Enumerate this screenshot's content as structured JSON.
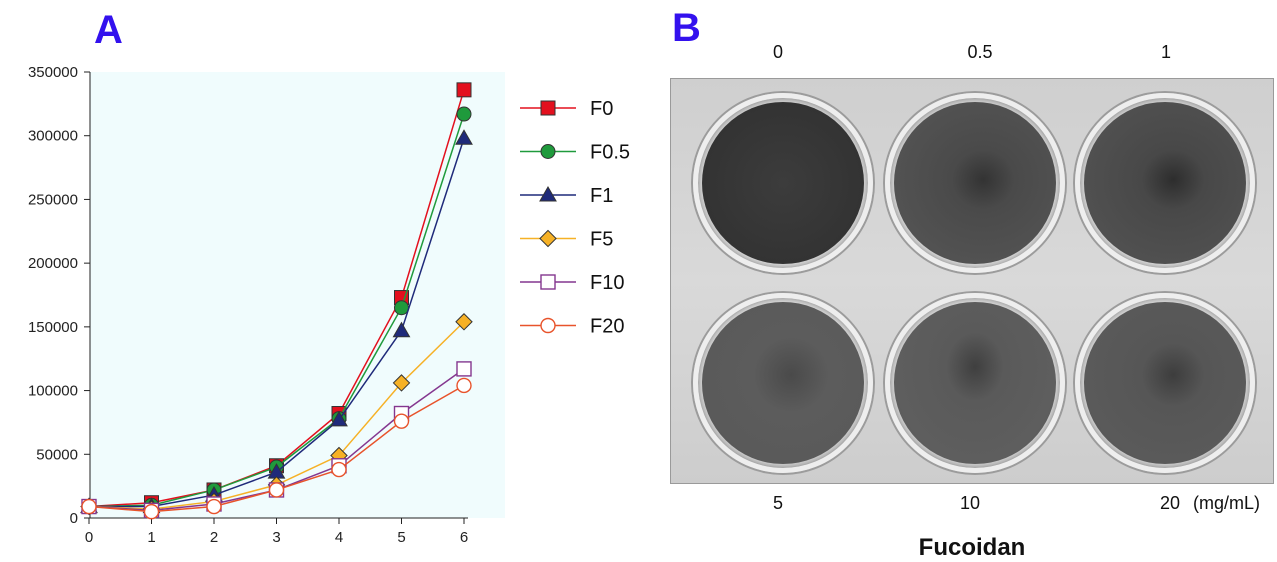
{
  "panels": {
    "a_label": "A",
    "b_label": "B"
  },
  "chart_data": {
    "type": "line",
    "title": "",
    "xlabel": "",
    "ylabel": "",
    "x": [
      0,
      1,
      2,
      3,
      4,
      5,
      6
    ],
    "xlim": [
      0,
      6
    ],
    "ylim": [
      0,
      350000
    ],
    "x_ticks": [
      "0",
      "1",
      "2",
      "3",
      "4",
      "5",
      "6"
    ],
    "y_ticks": [
      "0",
      "50000",
      "100000",
      "150000",
      "200000",
      "250000",
      "300000",
      "350000"
    ],
    "y_tick_values": [
      0,
      50000,
      100000,
      150000,
      200000,
      250000,
      300000,
      350000
    ],
    "plot_background": "#f0fcfd",
    "grid": false,
    "legend_position": "right",
    "series": [
      {
        "name": "F0",
        "color": "#e3101e",
        "marker": "square",
        "filled": true,
        "values": [
          9000,
          12000,
          22000,
          41000,
          82000,
          173000,
          336000
        ]
      },
      {
        "name": "F0.5",
        "color": "#1f9a3c",
        "marker": "circle",
        "filled": true,
        "values": [
          9000,
          10000,
          22000,
          40000,
          78000,
          165000,
          317000
        ]
      },
      {
        "name": "F1",
        "color": "#1f2a7a",
        "marker": "triangle",
        "filled": true,
        "values": [
          9000,
          9000,
          18000,
          36000,
          77000,
          147000,
          298000
        ]
      },
      {
        "name": "F5",
        "color": "#f6b126",
        "marker": "diamond",
        "filled": true,
        "values": [
          9000,
          7000,
          13000,
          26000,
          49000,
          106000,
          154000
        ]
      },
      {
        "name": "F10",
        "color": "#84378f",
        "marker": "square",
        "filled": false,
        "values": [
          9000,
          6000,
          11000,
          22000,
          41000,
          82000,
          117000
        ]
      },
      {
        "name": "F20",
        "color": "#e8532b",
        "marker": "circle",
        "filled": false,
        "values": [
          9000,
          5000,
          9000,
          22000,
          38000,
          76000,
          104000
        ]
      }
    ]
  },
  "plate": {
    "top_labels": [
      "0",
      "0.5",
      "1"
    ],
    "bottom_labels": [
      "5",
      "10",
      "20"
    ],
    "unit": "(mg/mL)",
    "axis_title": "Fucoidan"
  }
}
